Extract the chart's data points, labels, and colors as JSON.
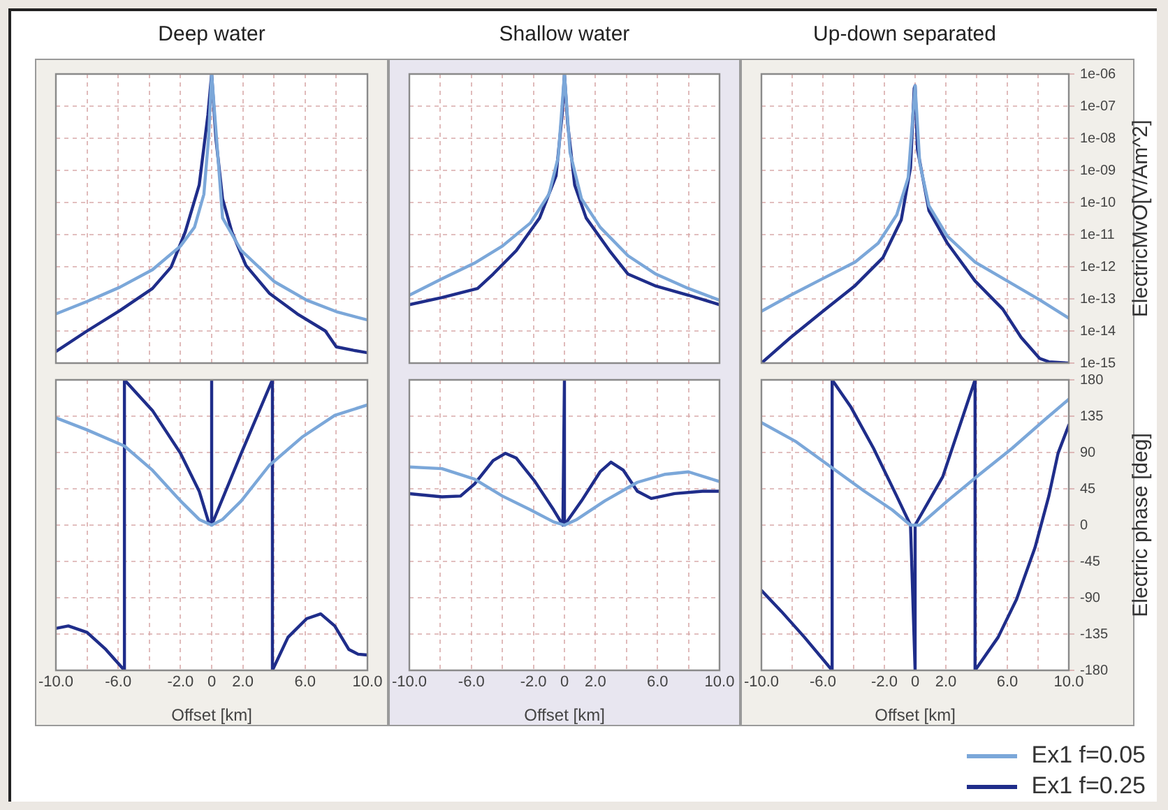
{
  "chart_data": [
    {
      "type": "line",
      "title": "Deep water",
      "log": true,
      "grid": true,
      "tick_labels": false,
      "xlim": [
        -10,
        10
      ],
      "ylim": [
        1e-15,
        1e-06
      ],
      "xticks": [
        {
          "value": -10,
          "label": null
        },
        {
          "value": -8,
          "label": null
        },
        {
          "value": -6,
          "label": null
        },
        {
          "value": -4,
          "label": null
        },
        {
          "value": -2,
          "label": null
        },
        {
          "value": 0,
          "label": null
        },
        {
          "value": 2,
          "label": null
        },
        {
          "value": 4,
          "label": null
        },
        {
          "value": 6,
          "label": null
        },
        {
          "value": 8,
          "label": null
        },
        {
          "value": 10,
          "label": null
        }
      ],
      "yticks": [
        {
          "value": 1e-15,
          "label": null
        },
        {
          "value": 1e-14,
          "label": null
        },
        {
          "value": 1e-13,
          "label": null
        },
        {
          "value": 1e-12,
          "label": null
        },
        {
          "value": 1e-11,
          "label": null
        },
        {
          "value": 1e-10,
          "label": null
        },
        {
          "value": 1e-09,
          "label": null
        },
        {
          "value": 1e-08,
          "label": null
        },
        {
          "value": 1e-07,
          "label": null
        },
        {
          "value": 1e-06,
          "label": null
        }
      ],
      "series": [
        {
          "color": "#7ba7d9",
          "x": [
            -10,
            -8,
            -5.9,
            -3.8,
            -2,
            -1.1,
            -0.5,
            -0.2,
            0,
            0.7,
            1.9,
            4,
            6.1,
            8,
            10
          ],
          "values": [
            3.4e-14,
            8.3e-14,
            2.3e-13,
            8.1e-13,
            4.4e-12,
            1.7e-11,
            1.8e-10,
            1e-08,
            1e-06,
            3.3e-11,
            3.2e-12,
            3.5e-13,
            9.1e-14,
            4e-14,
            2.2e-14
          ]
        },
        {
          "color": "#1f2d8a",
          "x": [
            -10,
            -8,
            -5.9,
            -3.8,
            -2.6,
            -1.7,
            -0.8,
            -0.24,
            0,
            0.27,
            0.7,
            1.3,
            2.2,
            3.7,
            5.5,
            7.3,
            8,
            9.1,
            10
          ],
          "values": [
            2.3e-15,
            1e-14,
            4.3e-14,
            2.1e-13,
            9.8e-13,
            1.2e-11,
            3.5e-10,
            5.4e-08,
            1e-06,
            1e-08,
            1.3e-10,
            1.2e-11,
            1.1e-12,
            1.5e-13,
            3.4e-14,
            1e-14,
            3.2e-15,
            2.5e-15,
            2.1e-15
          ]
        }
      ]
    },
    {
      "type": "line",
      "title": "Shallow water",
      "log": true,
      "grid": true,
      "tick_labels": false,
      "xlim": [
        -10,
        10
      ],
      "ylim": [
        1e-15,
        1e-06
      ],
      "xticks": [
        {
          "value": -10,
          "label": null
        },
        {
          "value": -8,
          "label": null
        },
        {
          "value": -6,
          "label": null
        },
        {
          "value": -4,
          "label": null
        },
        {
          "value": -2,
          "label": null
        },
        {
          "value": 0,
          "label": null
        },
        {
          "value": 2,
          "label": null
        },
        {
          "value": 4,
          "label": null
        },
        {
          "value": 6,
          "label": null
        },
        {
          "value": 8,
          "label": null
        },
        {
          "value": 10,
          "label": null
        }
      ],
      "yticks": [
        {
          "value": 1e-15,
          "label": null
        },
        {
          "value": 1e-14,
          "label": null
        },
        {
          "value": 1e-13,
          "label": null
        },
        {
          "value": 1e-12,
          "label": null
        },
        {
          "value": 1e-11,
          "label": null
        },
        {
          "value": 1e-10,
          "label": null
        },
        {
          "value": 1e-09,
          "label": null
        },
        {
          "value": 1e-08,
          "label": null
        },
        {
          "value": 1e-07,
          "label": null
        },
        {
          "value": 1e-06,
          "label": null
        }
      ],
      "series": [
        {
          "color": "#7ba7d9",
          "x": [
            -10,
            -7.9,
            -5.8,
            -4,
            -2.2,
            -1,
            -0.4,
            0,
            0.36,
            1.1,
            2.3,
            4.1,
            5.9,
            8,
            10
          ],
          "values": [
            1.3e-13,
            4.2e-13,
            1.3e-12,
            4.4e-12,
            2.3e-11,
            1.8e-10,
            2.6e-09,
            1e-06,
            3.6e-09,
            1.3e-10,
            1.7e-11,
            2.2e-12,
            5.9e-13,
            2.1e-13,
            9.1e-14
          ]
        },
        {
          "color": "#1f2d8a",
          "x": [
            -10,
            -7.9,
            -5.6,
            -4.6,
            -3.1,
            -1.6,
            -0.54,
            -0.15,
            0,
            0.21,
            0.66,
            1.4,
            2.9,
            4.1,
            5.9,
            8,
            10
          ],
          "values": [
            6.6e-14,
            1.1e-13,
            2.1e-13,
            5.9e-13,
            3.2e-12,
            3.3e-11,
            6.8e-10,
            5.4e-08,
            1e-06,
            2.8e-08,
            3.5e-10,
            3.3e-11,
            3.2e-12,
            5.9e-13,
            2.5e-13,
            1.3e-13,
            6.6e-14
          ]
        }
      ]
    },
    {
      "type": "line",
      "title": "Up-down  separated",
      "ylabel": "ElectricMvO[V/Am^2]",
      "log": true,
      "grid": true,
      "tick_labels": "y",
      "xlim": [
        -10,
        10
      ],
      "ylim": [
        1e-15,
        1e-06
      ],
      "xticks": [
        {
          "value": -10,
          "label": null
        },
        {
          "value": -8,
          "label": null
        },
        {
          "value": -6,
          "label": null
        },
        {
          "value": -4,
          "label": null
        },
        {
          "value": -2,
          "label": null
        },
        {
          "value": 0,
          "label": null
        },
        {
          "value": 2,
          "label": null
        },
        {
          "value": 4,
          "label": null
        },
        {
          "value": 6,
          "label": null
        },
        {
          "value": 8,
          "label": null
        },
        {
          "value": 10,
          "label": null
        }
      ],
      "yticks": [
        {
          "value": 1e-15,
          "label": "1e-15"
        },
        {
          "value": 1e-14,
          "label": "1e-14"
        },
        {
          "value": 1e-13,
          "label": "1e-13"
        },
        {
          "value": 1e-12,
          "label": "1e-12"
        },
        {
          "value": 1e-11,
          "label": "1e-11"
        },
        {
          "value": 1e-10,
          "label": "1e-10"
        },
        {
          "value": 1e-09,
          "label": "1e-09"
        },
        {
          "value": 1e-08,
          "label": "1e-08"
        },
        {
          "value": 1e-07,
          "label": "1e-07"
        },
        {
          "value": 1e-06,
          "label": "1e-06"
        }
      ],
      "series": [
        {
          "color": "#7ba7d9",
          "x": [
            -10,
            -8.1,
            -6,
            -3.9,
            -2.4,
            -1.2,
            -0.45,
            -0.15,
            0,
            0.3,
            0.9,
            2.1,
            3.9,
            6,
            8.1,
            10
          ],
          "values": [
            4.1e-14,
            1.3e-13,
            4.3e-13,
            1.4e-12,
            5.4e-12,
            4.1e-11,
            6e-10,
            4.8e-08,
            4.3e-07,
            1.7e-09,
            7.9e-11,
            8.9e-12,
            1.4e-12,
            3.6e-13,
            9.3e-14,
            2.5e-14
          ]
        },
        {
          "color": "#1f2d8a",
          "x": [
            -10,
            -8.1,
            -6,
            -3.9,
            -2.1,
            -0.9,
            -0.3,
            -0.06,
            0,
            0.15,
            0.9,
            2.1,
            3.9,
            5.7,
            6.9,
            8.1,
            8.7,
            10
          ],
          "values": [
            1e-15,
            6.3e-15,
            4.1e-14,
            2.6e-13,
            1.9e-12,
            2.9e-11,
            1.2e-09,
            3.6e-07,
            4.3e-07,
            4.6e-09,
            5.6e-11,
            5.4e-12,
            3.6e-13,
            4.8e-14,
            6.3e-15,
            1.4e-15,
            1.1e-15,
            1e-15
          ]
        }
      ]
    },
    {
      "type": "line",
      "xlabel": "Offset [km]",
      "grid": true,
      "tick_labels": "x",
      "xlim": [
        -10,
        10
      ],
      "ylim": [
        -180,
        180
      ],
      "xticks": [
        {
          "value": -10,
          "label": "-10.0"
        },
        {
          "value": -8,
          "label": null
        },
        {
          "value": -6,
          "label": "-6.0"
        },
        {
          "value": -4,
          "label": null
        },
        {
          "value": -2,
          "label": "-2.0"
        },
        {
          "value": 0,
          "label": "0"
        },
        {
          "value": 2,
          "label": "2.0"
        },
        {
          "value": 4,
          "label": null
        },
        {
          "value": 6,
          "label": "6.0"
        },
        {
          "value": 8,
          "label": null
        },
        {
          "value": 10,
          "label": "10.0"
        }
      ],
      "yticks": [
        {
          "value": -180,
          "label": null
        },
        {
          "value": -135,
          "label": null
        },
        {
          "value": -90,
          "label": null
        },
        {
          "value": -45,
          "label": null
        },
        {
          "value": 0,
          "label": null
        },
        {
          "value": 45,
          "label": null
        },
        {
          "value": 90,
          "label": null
        },
        {
          "value": 135,
          "label": null
        },
        {
          "value": 180,
          "label": null
        }
      ],
      "series": [
        {
          "color": "#7ba7d9",
          "x": [
            -10,
            -8,
            -5.6,
            -3.8,
            -2,
            -0.8,
            0,
            0.7,
            1.9,
            3.7,
            5.8,
            7.9,
            10
          ],
          "values": [
            133,
            118,
            98,
            68,
            30,
            7,
            0,
            7,
            30,
            74,
            109,
            136,
            149
          ]
        },
        {
          "color": "#1f2d8a",
          "x": [
            -10,
            -9.2,
            -8,
            -6.8,
            -5.6,
            -5.6,
            -3.8,
            -2,
            -0.8,
            -0.2,
            0,
            0,
            0,
            1.9,
            3.9,
            3.9,
            4.9,
            6.1,
            7,
            7.9,
            8.8,
            9.4,
            10
          ],
          "values": [
            -128,
            -125,
            -133,
            -154,
            -180,
            180,
            142,
            89,
            42,
            4,
            0,
            180,
            0,
            89,
            180,
            -180,
            -139,
            -116,
            -110,
            -125,
            -154,
            -160,
            -161
          ]
        }
      ]
    },
    {
      "type": "line",
      "xlabel": "Offset [km]",
      "grid": true,
      "tick_labels": "x",
      "xlim": [
        -10,
        10
      ],
      "ylim": [
        -180,
        180
      ],
      "xticks": [
        {
          "value": -10,
          "label": "-10.0"
        },
        {
          "value": -8,
          "label": null
        },
        {
          "value": -6,
          "label": "-6.0"
        },
        {
          "value": -4,
          "label": null
        },
        {
          "value": -2,
          "label": "-2.0"
        },
        {
          "value": 0,
          "label": "0"
        },
        {
          "value": 2,
          "label": "2.0"
        },
        {
          "value": 4,
          "label": null
        },
        {
          "value": 6,
          "label": "6.0"
        },
        {
          "value": 8,
          "label": null
        },
        {
          "value": 10,
          "label": "10.0"
        }
      ],
      "yticks": [
        {
          "value": -180,
          "label": null
        },
        {
          "value": -135,
          "label": null
        },
        {
          "value": -90,
          "label": null
        },
        {
          "value": -45,
          "label": null
        },
        {
          "value": 0,
          "label": null
        },
        {
          "value": 45,
          "label": null
        },
        {
          "value": 90,
          "label": null
        },
        {
          "value": 135,
          "label": null
        },
        {
          "value": 180,
          "label": null
        }
      ],
      "series": [
        {
          "color": "#7ba7d9",
          "x": [
            -10,
            -7.9,
            -5.8,
            -4,
            -2.2,
            -0.7,
            0,
            0.8,
            2.6,
            4.7,
            6.5,
            8,
            10
          ],
          "values": [
            72,
            70,
            57,
            36,
            19,
            4,
            0,
            7,
            30,
            53,
            63,
            66,
            54
          ]
        },
        {
          "color": "#1f2d8a",
          "x": [
            -10,
            -7.9,
            -6.7,
            -5.8,
            -4.6,
            -3.8,
            -3.1,
            -1.9,
            -0.7,
            -0.1,
            0,
            0,
            1.1,
            2.3,
            3,
            3.8,
            4.7,
            5.6,
            7.1,
            8.9,
            10
          ],
          "values": [
            39,
            35,
            36,
            51,
            80,
            89,
            83,
            54,
            19,
            0,
            180,
            0,
            30,
            66,
            78,
            68,
            42,
            33,
            39,
            42,
            42
          ]
        }
      ]
    },
    {
      "type": "line",
      "xlabel": "Offset [km]",
      "ylabel": "Electric phase [deg]",
      "grid": true,
      "legend": "bottom right",
      "xlim": [
        -10,
        10
      ],
      "ylim": [
        -180,
        180
      ],
      "xticks": [
        {
          "value": -10,
          "label": "-10.0"
        },
        {
          "value": -8,
          "label": null
        },
        {
          "value": -6,
          "label": "-6.0"
        },
        {
          "value": -4,
          "label": null
        },
        {
          "value": -2,
          "label": "-2.0"
        },
        {
          "value": 0,
          "label": "0"
        },
        {
          "value": 2,
          "label": "2.0"
        },
        {
          "value": 4,
          "label": null
        },
        {
          "value": 6,
          "label": "6.0"
        },
        {
          "value": 8,
          "label": null
        },
        {
          "value": 10,
          "label": "10.0"
        }
      ],
      "yticks": [
        -180,
        -135,
        -90,
        -45,
        0,
        45,
        90,
        135,
        180
      ],
      "series": [
        {
          "name": "Ex1 f=0.05",
          "color": "#7ba7d9",
          "x": [
            -10,
            -7.8,
            -5.4,
            -3.3,
            -1.5,
            -0.3,
            0.3,
            2.1,
            4.2,
            6.3,
            8.4,
            10
          ],
          "values": [
            127,
            104,
            71,
            42,
            19,
            0,
            0,
            30,
            63,
            95,
            130,
            156
          ]
        },
        {
          "name": "Ex1 f=0.25",
          "color": "#1f2d8a",
          "x": [
            -10,
            -8.7,
            -7.2,
            -5.4,
            -5.4,
            -4.2,
            -2.7,
            -1.2,
            -0.3,
            0,
            0,
            1.8,
            3.9,
            3.9,
            5.4,
            6.6,
            7.8,
            8.7,
            9.3,
            10
          ],
          "values": [
            -81,
            -107,
            -139,
            -180,
            180,
            147,
            95,
            36,
            0,
            -180,
            0,
            60,
            180,
            -180,
            -139,
            -92,
            -28,
            36,
            89,
            124
          ]
        }
      ]
    }
  ]
}
